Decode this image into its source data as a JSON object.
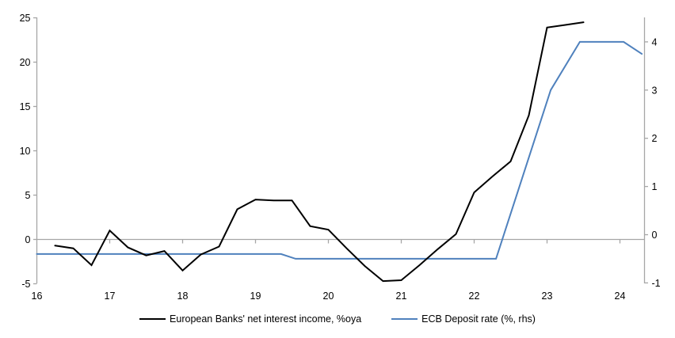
{
  "chart_data": {
    "type": "line",
    "title": "",
    "x_axis": {
      "tick_labels": [
        "16",
        "17",
        "18",
        "19",
        "20",
        "21",
        "22",
        "23",
        "24"
      ],
      "tick_years": [
        2016,
        2017,
        2018,
        2019,
        2020,
        2021,
        2022,
        2023,
        2024
      ],
      "range_years": [
        2016,
        2024.35
      ]
    },
    "left_axis": {
      "ticks": [
        -5,
        0,
        5,
        10,
        15,
        20,
        25
      ],
      "range": [
        -5,
        25
      ]
    },
    "right_axis": {
      "ticks": [
        -1,
        0,
        1,
        2,
        3,
        4
      ],
      "range": [
        -1,
        4.5
      ]
    },
    "grid": "zero-line-only",
    "legend_position": "bottom-center",
    "series": [
      {
        "name": "European Banks' net interest income, %oya",
        "axis": "left",
        "color": "#000000",
        "points": [
          [
            2016.25,
            -0.7
          ],
          [
            2016.5,
            -1.0
          ],
          [
            2016.75,
            -2.9
          ],
          [
            2017.0,
            1.0
          ],
          [
            2017.25,
            -0.9
          ],
          [
            2017.5,
            -1.8
          ],
          [
            2017.75,
            -1.3
          ],
          [
            2018.0,
            -3.5
          ],
          [
            2018.25,
            -1.7
          ],
          [
            2018.5,
            -0.8
          ],
          [
            2018.75,
            3.4
          ],
          [
            2019.0,
            4.5
          ],
          [
            2019.25,
            4.4
          ],
          [
            2019.5,
            4.4
          ],
          [
            2019.75,
            1.5
          ],
          [
            2020.0,
            1.1
          ],
          [
            2020.25,
            -1.0
          ],
          [
            2020.5,
            -3.0
          ],
          [
            2020.75,
            -4.7
          ],
          [
            2021.0,
            -4.6
          ],
          [
            2021.25,
            -2.9
          ],
          [
            2021.5,
            -1.1
          ],
          [
            2021.75,
            0.6
          ],
          [
            2022.0,
            5.3
          ],
          [
            2022.25,
            7.1
          ],
          [
            2022.5,
            8.8
          ],
          [
            2022.75,
            14.0
          ],
          [
            2023.0,
            23.9
          ],
          [
            2023.25,
            24.2
          ],
          [
            2023.5,
            24.5
          ]
        ]
      },
      {
        "name": "ECB Deposit rate (%, rhs)",
        "axis": "right",
        "color": "#4f81bd",
        "points": [
          [
            2016.0,
            -0.4
          ],
          [
            2019.35,
            -0.4
          ],
          [
            2019.55,
            -0.5
          ],
          [
            2022.3,
            -0.5
          ],
          [
            2023.05,
            3.0
          ],
          [
            2023.45,
            4.0
          ],
          [
            2024.05,
            4.0
          ],
          [
            2024.3,
            3.75
          ]
        ]
      }
    ]
  },
  "colors": {
    "axis": "#a6a6a6",
    "zero_line": "#a6a6a6",
    "text": "#000000",
    "background": "#ffffff"
  }
}
